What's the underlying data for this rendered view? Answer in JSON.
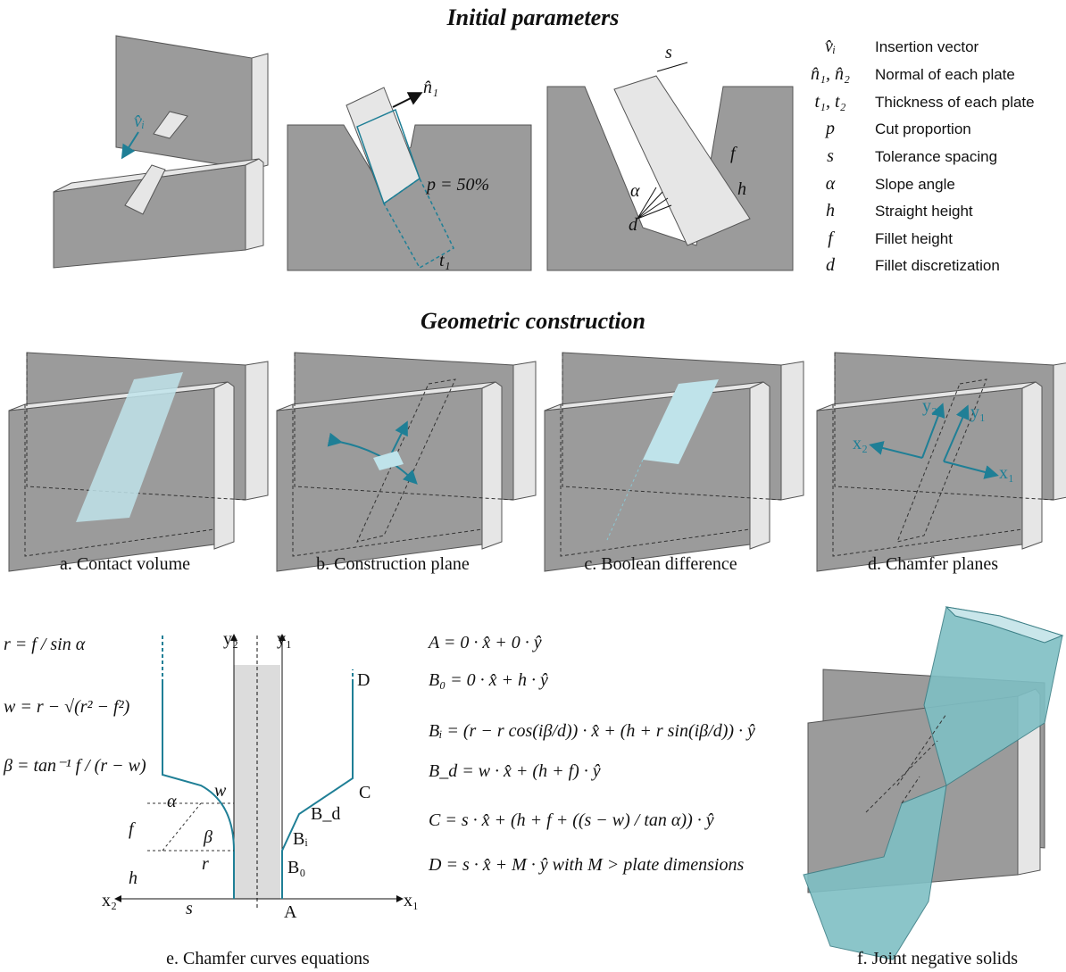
{
  "sections": {
    "initial": "Initial parameters",
    "construction": "Geometric construction"
  },
  "legend": [
    {
      "symbol": "v̂ᵢ",
      "text": "Insertion vector"
    },
    {
      "symbol": "n̂₁, n̂₂",
      "text": "Normal of each plate"
    },
    {
      "symbol": "t₁, t₂",
      "text": "Thickness of each plate"
    },
    {
      "symbol": "p",
      "text": "Cut proportion"
    },
    {
      "symbol": "s",
      "text": "Tolerance spacing"
    },
    {
      "symbol": "α",
      "text": "Slope angle"
    },
    {
      "symbol": "h",
      "text": "Straight height"
    },
    {
      "symbol": "f",
      "text": "Fillet height"
    },
    {
      "symbol": "d",
      "text": "Fillet discretization"
    }
  ],
  "top_labels": {
    "v": "v̂ᵢ",
    "n": "n̂₁",
    "p": "p = 50%",
    "t": "t₁",
    "s": "s",
    "f": "f",
    "h": "h",
    "alpha": "α",
    "d": "d"
  },
  "axis_labels": {
    "x1": "x₁",
    "y1": "y₁",
    "x2": "x₂",
    "y2": "y₂"
  },
  "chamfer_labels": {
    "y2": "y₂",
    "y1": "y₁",
    "x2": "x₂",
    "x1": "x₁",
    "s": "s",
    "h": "h",
    "f": "f",
    "alpha": "α",
    "w": "w",
    "beta": "β",
    "r": "r",
    "A": "A",
    "B0": "B₀",
    "Bi": "Bᵢ",
    "Bd": "B_d",
    "C": "C",
    "D": "D"
  },
  "equations_left": [
    "r = f / sin α",
    "w = r − √(r² − f²)",
    "β = tan⁻¹ f / (r − w)"
  ],
  "equations_right": [
    "A = 0 · x̂ + 0 · ŷ",
    "B₀ = 0 · x̂ + h · ŷ",
    "Bᵢ = (r − r cos(iβ/d)) · x̂ + (h + r sin(iβ/d)) · ŷ",
    "B_d = w · x̂ + (h + f) · ŷ",
    "C = s · x̂ + (h + f + ((s − w) / tan α)) · ŷ",
    "D = s · x̂ + M · ŷ  with M > plate dimensions"
  ],
  "captions": [
    "a. Contact volume",
    "b. Construction plane",
    "c. Boolean difference",
    "d. Chamfer planes",
    "e. Chamfer curves equations",
    "f. Joint negative solids"
  ]
}
